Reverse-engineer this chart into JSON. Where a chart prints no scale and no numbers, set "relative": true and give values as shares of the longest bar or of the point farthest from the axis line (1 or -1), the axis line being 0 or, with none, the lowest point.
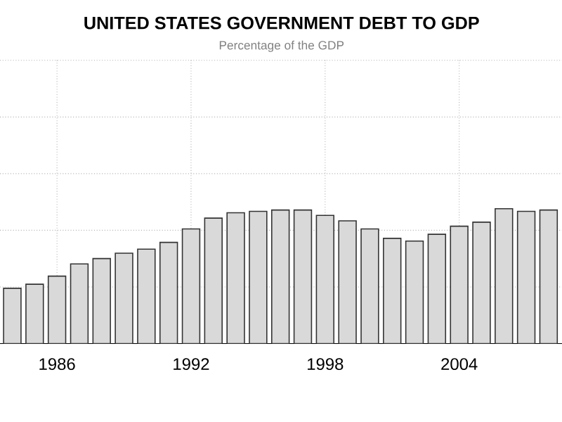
{
  "chart_data": {
    "type": "bar",
    "title": "UNITED STATES GOVERNMENT DEBT TO GDP",
    "subtitle": "Percentage of the GDP",
    "categories": [
      null,
      null,
      "1986",
      null,
      null,
      null,
      null,
      null,
      "1992",
      null,
      null,
      null,
      null,
      null,
      "1998",
      null,
      null,
      null,
      null,
      null,
      "2004",
      null,
      null,
      null,
      null
    ],
    "values": [
      0.41,
      0.44,
      0.5,
      0.59,
      0.63,
      0.67,
      0.7,
      0.75,
      0.85,
      0.93,
      0.97,
      0.98,
      0.99,
      0.99,
      0.95,
      0.91,
      0.85,
      0.78,
      0.76,
      0.81,
      0.87,
      0.9,
      1.0,
      0.98,
      0.99
    ],
    "color": "#d9d9d9",
    "relative": true,
    "grid": true
  }
}
